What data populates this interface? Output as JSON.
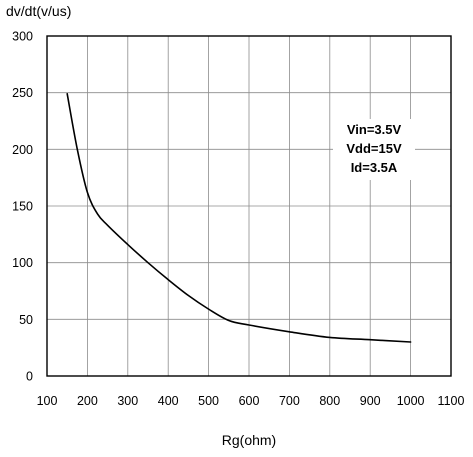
{
  "chart_data": {
    "type": "line",
    "ylabel": "dv/dt(v/us)",
    "xlabel": "Rg(ohm)",
    "xlim": [
      100,
      1100
    ],
    "ylim": [
      0,
      300
    ],
    "x_ticks": [
      100,
      200,
      300,
      400,
      500,
      600,
      700,
      800,
      900,
      1000,
      1100
    ],
    "y_ticks": [
      0,
      50,
      100,
      150,
      200,
      250,
      300
    ],
    "grid": true,
    "annotations": [
      "Vin=3.5V",
      "Vdd=15V",
      "Id=3.5A"
    ],
    "series": [
      {
        "x": [
          150,
          175,
          200,
          225,
          250,
          300,
          350,
          400,
          450,
          500,
          550,
          600,
          700,
          800,
          900,
          1000
        ],
        "y": [
          249,
          200,
          162,
          143,
          133,
          116,
          100,
          85,
          71,
          59,
          49,
          45,
          39,
          34,
          32,
          30
        ]
      }
    ]
  }
}
